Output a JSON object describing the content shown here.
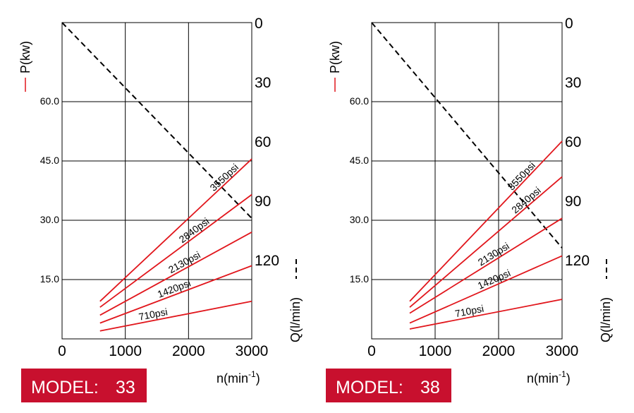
{
  "chart_data": [
    {
      "type": "line",
      "model_label": "MODEL:",
      "model_number": "33",
      "xlabel": "n(min",
      "xlabel_exp": "-1",
      "xlabel_end": ")",
      "ylabel_left": "P(kw)",
      "ylabel_right": "Q(l/min)",
      "xlim": [
        0,
        3000
      ],
      "ylim_p": [
        0,
        80
      ],
      "ylim_q": [
        0,
        160
      ],
      "x_ticks": [
        "0",
        "1000",
        "2000",
        "3000"
      ],
      "p_ticks": [
        {
          "value": 15,
          "label": "15.0"
        },
        {
          "value": 30,
          "label": "30.0"
        },
        {
          "value": 45,
          "label": "45.0"
        },
        {
          "value": 60,
          "label": "60.0"
        }
      ],
      "q_ticks": [
        {
          "value": 0,
          "label": "0"
        },
        {
          "value": 30,
          "label": "30"
        },
        {
          "value": 60,
          "label": "60"
        },
        {
          "value": 90,
          "label": "90"
        },
        {
          "value": 120,
          "label": "120"
        }
      ],
      "flow_line": {
        "x": [
          0,
          3000
        ],
        "q": [
          0,
          99
        ],
        "color": "#000000"
      },
      "series_color": "#e1161c",
      "series": [
        {
          "name": "710psi",
          "x": [
            600,
            3000
          ],
          "p": [
            2.0,
            9.5
          ],
          "label_at": 1450
        },
        {
          "name": "1420psi",
          "x": [
            600,
            3000
          ],
          "p": [
            4.0,
            18.5
          ],
          "label_at": 1790
        },
        {
          "name": "2130psi",
          "x": [
            600,
            3000
          ],
          "p": [
            6.0,
            27.0
          ],
          "label_at": 1960
        },
        {
          "name": "2840psi",
          "x": [
            600,
            3000
          ],
          "p": [
            8.0,
            36.5
          ],
          "label_at": 2120
        },
        {
          "name": "3550psi",
          "x": [
            600,
            3000
          ],
          "p": [
            9.5,
            45.5
          ],
          "label_at": 2600
        }
      ]
    },
    {
      "type": "line",
      "model_label": "MODEL:",
      "model_number": "38",
      "xlabel": "n(min",
      "xlabel_exp": "-1",
      "xlabel_end": ")",
      "ylabel_left": "P(kw)",
      "ylabel_right": "Q(l/min)",
      "xlim": [
        0,
        3000
      ],
      "ylim_p": [
        0,
        80
      ],
      "ylim_q": [
        0,
        160
      ],
      "x_ticks": [
        "0",
        "1000",
        "2000",
        "3000"
      ],
      "p_ticks": [
        {
          "value": 15,
          "label": "15.0"
        },
        {
          "value": 30,
          "label": "30.0"
        },
        {
          "value": 45,
          "label": "45.0"
        },
        {
          "value": 60,
          "label": "60.0"
        }
      ],
      "q_ticks": [
        {
          "value": 0,
          "label": "0"
        },
        {
          "value": 30,
          "label": "30"
        },
        {
          "value": 60,
          "label": "60"
        },
        {
          "value": 90,
          "label": "90"
        },
        {
          "value": 120,
          "label": "120"
        }
      ],
      "flow_line": {
        "x": [
          0,
          3000
        ],
        "q": [
          0,
          114
        ],
        "color": "#000000"
      },
      "series_color": "#e1161c",
      "series": [
        {
          "name": "710psi",
          "x": [
            600,
            3000
          ],
          "p": [
            2.5,
            10.0
          ],
          "label_at": 1550
        },
        {
          "name": "1420psi",
          "x": [
            600,
            3000
          ],
          "p": [
            4.0,
            21.0
          ],
          "label_at": 1950
        },
        {
          "name": "2130psi",
          "x": [
            600,
            3000
          ],
          "p": [
            6.5,
            30.5
          ],
          "label_at": 1950
        },
        {
          "name": "2840psi",
          "x": [
            600,
            3000
          ],
          "p": [
            8.0,
            41.0
          ],
          "label_at": 2470
        },
        {
          "name": "3550psi",
          "x": [
            600,
            3000
          ],
          "p": [
            9.5,
            50.0
          ],
          "label_at": 2400
        }
      ]
    }
  ]
}
